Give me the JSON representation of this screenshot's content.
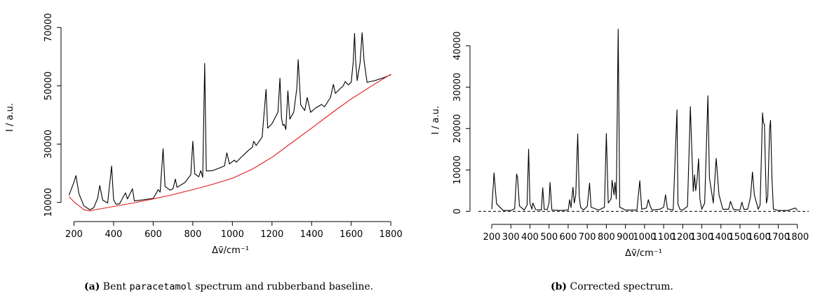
{
  "captions": {
    "a_label": "(a)",
    "a_pre": "Bent ",
    "a_code": "paracetamol",
    "a_post": " spectrum and rubberband baseline.",
    "b_label": "(b)",
    "b_text": "Corrected spectrum."
  },
  "colors": {
    "spectrum": "#000000",
    "baseline": "#e31a1c",
    "zero_line": "#000000"
  },
  "chart_data": [
    {
      "type": "line",
      "xlabel": "Δṽ/cm⁻¹",
      "ylabel": "I / a.u.",
      "xlim": [
        170,
        1810
      ],
      "ylim": [
        6800,
        71500
      ],
      "xticks": [
        "200",
        "400",
        "600",
        "800",
        "1000",
        "1200",
        "1400",
        "1600",
        "1800"
      ],
      "yticks": [
        "10000",
        "30000",
        "50000",
        "70000"
      ],
      "grid": false,
      "series": [
        {
          "role": "spectrum",
          "x": [
            175,
            200,
            210,
            225,
            250,
            280,
            300,
            320,
            330,
            345,
            370,
            390,
            400,
            412,
            430,
            460,
            470,
            495,
            505,
            515,
            560,
            600,
            610,
            625,
            635,
            650,
            660,
            685,
            700,
            712,
            720,
            760,
            790,
            800,
            810,
            830,
            840,
            850,
            860,
            868,
            900,
            960,
            972,
            985,
            1010,
            1020,
            1040,
            1080,
            1100,
            1108,
            1120,
            1150,
            1170,
            1178,
            1200,
            1230,
            1240,
            1248,
            1255,
            1262,
            1270,
            1280,
            1290,
            1310,
            1325,
            1332,
            1345,
            1365,
            1378,
            1395,
            1420,
            1450,
            1465,
            1495,
            1510,
            1520,
            1540,
            1560,
            1570,
            1585,
            1600,
            1610,
            1617,
            1622,
            1630,
            1645,
            1655,
            1665,
            1680,
            1720,
            1760,
            1800
          ],
          "y": [
            12500,
            17000,
            19200,
            13000,
            8800,
            7500,
            8200,
            11500,
            15800,
            10800,
            9800,
            22500,
            11000,
            9400,
            9500,
            13300,
            11200,
            14700,
            10500,
            10600,
            11000,
            11400,
            12500,
            14400,
            13500,
            28400,
            15500,
            14200,
            14700,
            18000,
            15200,
            16800,
            19500,
            31000,
            19800,
            18800,
            20900,
            18600,
            57700,
            20800,
            20900,
            22500,
            27000,
            23200,
            24500,
            23800,
            25200,
            27800,
            28900,
            31000,
            29500,
            32400,
            48800,
            35500,
            37000,
            41000,
            52600,
            39000,
            36400,
            36800,
            35000,
            48300,
            38600,
            41000,
            49000,
            59000,
            43500,
            41500,
            46000,
            40900,
            42400,
            43600,
            42800,
            46000,
            50500,
            47400,
            48800,
            50000,
            51500,
            50300,
            51200,
            58000,
            68000,
            59000,
            51800,
            58000,
            68200,
            58400,
            51200,
            51800,
            52700,
            53800
          ]
        },
        {
          "role": "baseline",
          "x": [
            175,
            200,
            250,
            280,
            300,
            400,
            500,
            600,
            700,
            800,
            900,
            1000,
            1100,
            1200,
            1300,
            1400,
            1500,
            1600,
            1700,
            1800
          ],
          "y": [
            12000,
            10200,
            7500,
            7100,
            7400,
            8600,
            9800,
            11200,
            12700,
            14400,
            16200,
            18300,
            21400,
            25500,
            30500,
            35500,
            40600,
            45500,
            49800,
            54000
          ]
        }
      ]
    },
    {
      "type": "line",
      "xlabel": "Δṽ/cm⁻¹",
      "ylabel": "I / a.u.",
      "xlim": [
        130,
        1860
      ],
      "ylim": [
        -1800,
        45800
      ],
      "xticks": [
        "200",
        "300",
        "400",
        "500",
        "600",
        "700",
        "800",
        "900",
        "1000",
        "1100",
        "1200",
        "1300",
        "1400",
        "1500",
        "1600",
        "1700",
        "1800"
      ],
      "yticks": [
        "0",
        "10000",
        "20000",
        "30000",
        "40000"
      ],
      "zero_line": 0,
      "grid": false,
      "series": [
        {
          "role": "corrected",
          "x": [
            200,
            212,
            225,
            260,
            300,
            320,
            330,
            335,
            345,
            370,
            385,
            393,
            400,
            410,
            415,
            430,
            460,
            467,
            475,
            490,
            500,
            505,
            515,
            560,
            600,
            608,
            615,
            625,
            632,
            640,
            650,
            658,
            665,
            680,
            700,
            712,
            720,
            760,
            790,
            800,
            810,
            825,
            830,
            840,
            845,
            852,
            862,
            870,
            900,
            960,
            975,
            985,
            1010,
            1020,
            1030,
            1040,
            1080,
            1100,
            1110,
            1120,
            1150,
            1170,
            1175,
            1185,
            1200,
            1225,
            1240,
            1245,
            1255,
            1262,
            1268,
            1275,
            1283,
            1290,
            1300,
            1315,
            1332,
            1340,
            1360,
            1375,
            1390,
            1410,
            1440,
            1450,
            1465,
            1490,
            1500,
            1510,
            1520,
            1540,
            1555,
            1565,
            1575,
            1595,
            1605,
            1618,
            1622,
            1628,
            1632,
            1638,
            1645,
            1655,
            1660,
            1667,
            1675,
            1700,
            1750,
            1770,
            1790,
            1800
          ],
          "y": [
            500,
            9300,
            1800,
            200,
            200,
            600,
            9000,
            8200,
            1300,
            300,
            1500,
            15000,
            2000,
            500,
            2000,
            400,
            300,
            5700,
            500,
            400,
            2000,
            7000,
            300,
            200,
            300,
            2800,
            900,
            5800,
            2000,
            4000,
            18700,
            3500,
            1000,
            300,
            1200,
            6800,
            1000,
            300,
            1000,
            18800,
            2000,
            3000,
            7500,
            4000,
            7000,
            3000,
            44000,
            1000,
            300,
            300,
            7400,
            500,
            800,
            2800,
            1200,
            300,
            500,
            1000,
            4000,
            600,
            300,
            24500,
            1800,
            500,
            300,
            1200,
            25300,
            18000,
            4800,
            8800,
            5000,
            7500,
            12700,
            3000,
            500,
            2000,
            27900,
            8000,
            2000,
            12800,
            4000,
            500,
            500,
            2400,
            500,
            300,
            400,
            2200,
            500,
            500,
            3500,
            9500,
            4000,
            500,
            1500,
            23800,
            21500,
            21000,
            13000,
            2000,
            3500,
            20000,
            22000,
            8000,
            500,
            200,
            200,
            500,
            800,
            200
          ]
        }
      ]
    }
  ]
}
